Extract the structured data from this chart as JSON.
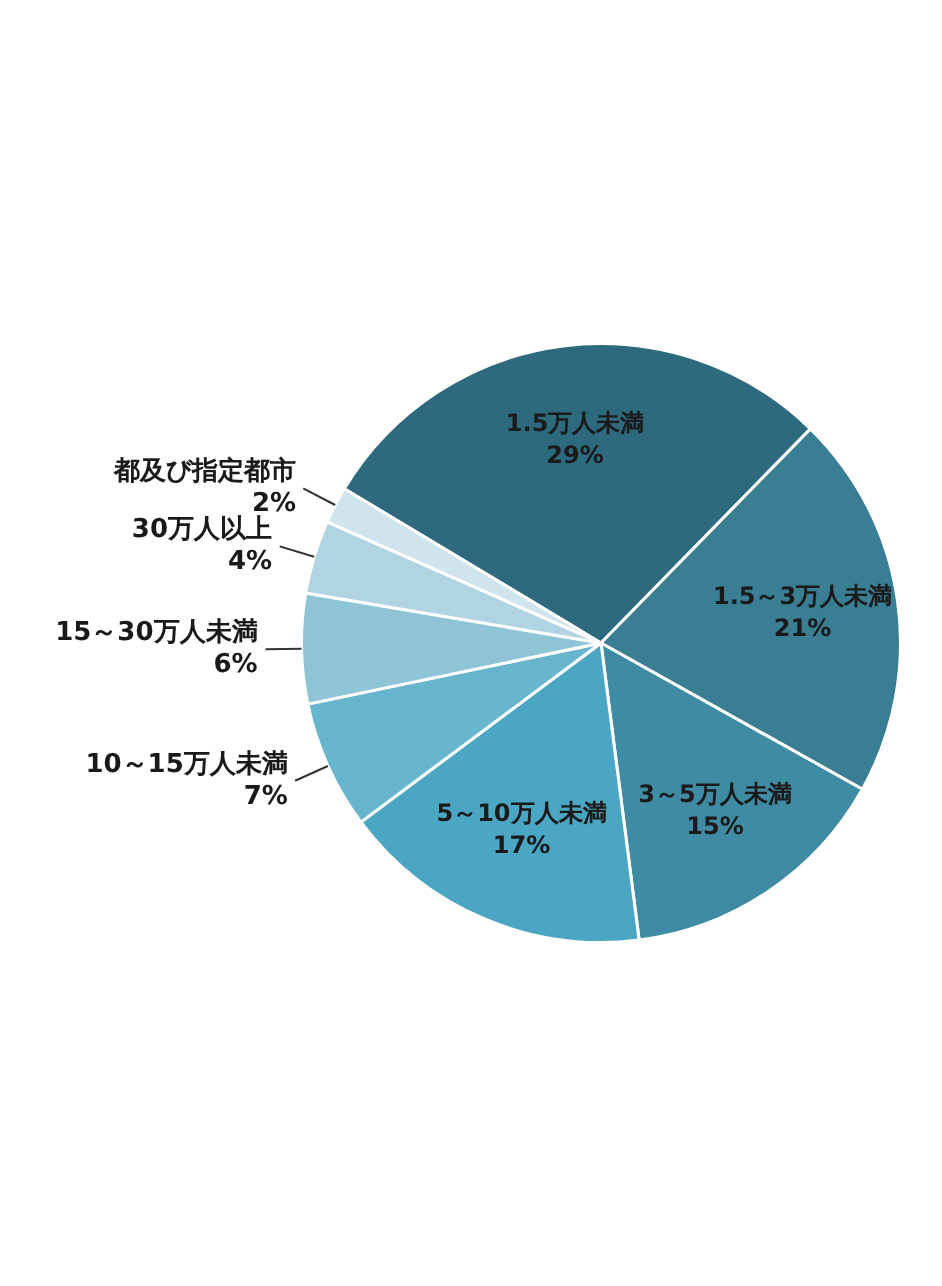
{
  "chart_data": {
    "type": "pie",
    "categories": [
      "1.5万人未満",
      "1.5～3万人未満",
      "3～5万人未満",
      "5～10万人未満",
      "10～15万人未満",
      "15～30万人未満",
      "30万人以上",
      "都及び指定都市"
    ],
    "values": [
      29,
      21,
      15,
      17,
      7,
      6,
      4,
      2
    ],
    "colors": [
      "#2e6a7e",
      "#3a7e93",
      "#3f8ba3",
      "#4aa6c2",
      "#68b6cd",
      "#8fc4d6",
      "#b0d4e2",
      "#cfe4ed"
    ],
    "value_labels": [
      "29%",
      "21%",
      "15%",
      "17%",
      "7%",
      "6%",
      "4%",
      "2%"
    ],
    "legend": false
  }
}
